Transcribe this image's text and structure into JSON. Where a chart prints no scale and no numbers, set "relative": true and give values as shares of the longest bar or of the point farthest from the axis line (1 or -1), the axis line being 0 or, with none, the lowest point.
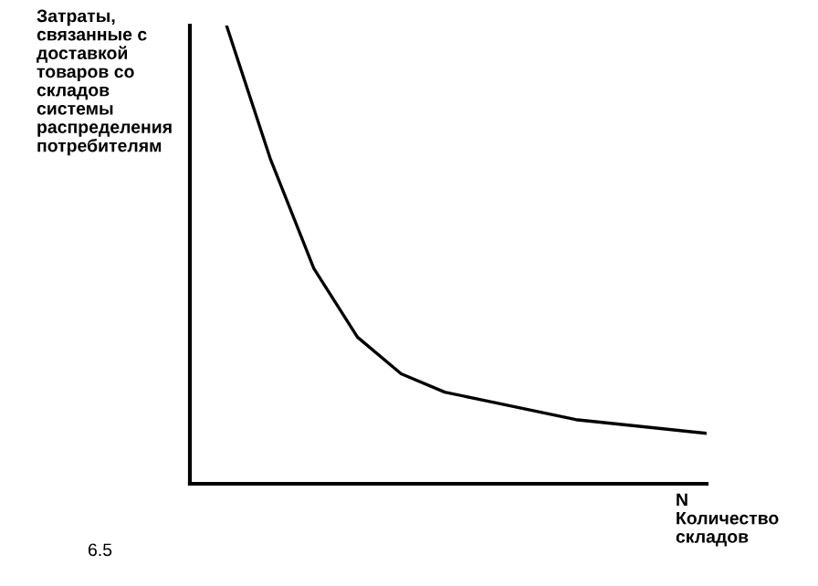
{
  "chart_data": {
    "type": "line",
    "relative": true,
    "ylabel": "Затраты,\nсвязанные с\nдоставкой\nтоваров со\nскладов\nсистемы\nраспределения\nпотребителям",
    "xlabel": "N\nКоличество\nскладов",
    "annotations": [
      "6.5"
    ],
    "categories": [
      null,
      null,
      null,
      null,
      null,
      null,
      null,
      null,
      null,
      null,
      null,
      null
    ],
    "series": [
      {
        "color": "#000000",
        "values": [
          1,
          0.71,
          0.47,
          0.32,
          0.24,
          0.2,
          0.18,
          0.16,
          0.14,
          0.13,
          0.12,
          0.11
        ]
      }
    ],
    "grid": false,
    "legend": false
  }
}
